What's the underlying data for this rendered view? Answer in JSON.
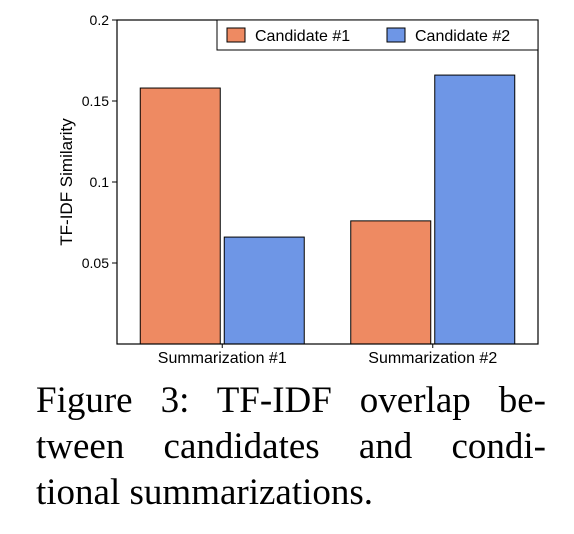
{
  "chart_data": {
    "type": "bar",
    "categories": [
      "Summarization #1",
      "Summarization #2"
    ],
    "series": [
      {
        "name": "Candidate #1",
        "color": "#EE8A62",
        "values": [
          0.158,
          0.076
        ]
      },
      {
        "name": "Candidate #2",
        "color": "#6E96E6",
        "values": [
          0.066,
          0.166
        ]
      }
    ],
    "ylabel": "TF-IDF Similarity",
    "xlabel": "",
    "ylim": [
      0,
      0.2
    ],
    "yticks": [
      "0.05",
      "0.1",
      "0.15",
      "0.2"
    ],
    "legend": "top-right",
    "grid": false
  },
  "caption": {
    "lines": [
      "Figure 3: TF-IDF overlap be-",
      "tween candidates and condi-",
      "tional summarizations."
    ]
  }
}
